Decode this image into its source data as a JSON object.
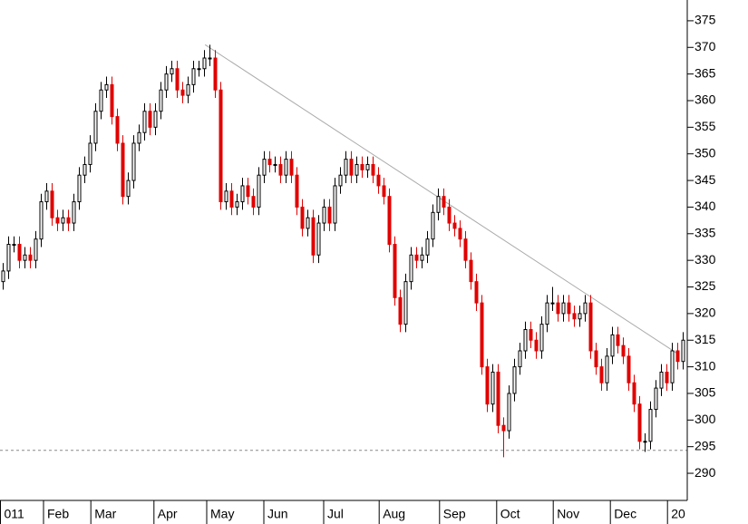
{
  "chart_data": {
    "type": "candlestick",
    "xlim": [
      -0.5,
      125.5
    ],
    "xticks": [
      {
        "value": -0.5,
        "label": "011"
      },
      {
        "value": 7.5,
        "label": "Feb"
      },
      {
        "value": 16.2,
        "label": "Mar"
      },
      {
        "value": 27.8,
        "label": "Apr"
      },
      {
        "value": 37.5,
        "label": "May"
      },
      {
        "value": 48,
        "label": "Jun"
      },
      {
        "value": 59,
        "label": "Jul"
      },
      {
        "value": 69.2,
        "label": "Aug"
      },
      {
        "value": 80.3,
        "label": "Sep"
      },
      {
        "value": 90.8,
        "label": "Oct"
      },
      {
        "value": 101.2,
        "label": "Nov"
      },
      {
        "value": 111.7,
        "label": "Dec"
      },
      {
        "value": 122.2,
        "label": "20"
      }
    ],
    "ylim": [
      284.9,
      378.9
    ],
    "yticks": [
      290,
      295,
      300,
      305,
      310,
      315,
      320,
      325,
      330,
      335,
      340,
      345,
      350,
      355,
      360,
      365,
      370,
      375
    ],
    "up_color": "#000000",
    "down_color": "#e00000",
    "open": [
      326,
      328,
      333,
      333,
      330,
      331,
      330,
      334,
      341,
      343,
      338,
      337,
      338,
      337,
      341,
      346,
      348,
      352,
      358,
      362,
      363,
      357,
      352,
      342,
      345,
      352,
      354,
      358,
      355,
      358,
      362,
      365,
      366,
      362,
      361,
      363,
      366,
      366,
      368,
      368,
      362,
      341,
      343,
      340,
      341,
      344,
      342,
      340,
      346,
      349,
      348,
      348,
      346,
      349,
      346,
      340,
      336,
      338,
      331,
      337,
      340,
      337,
      344,
      346,
      349,
      346,
      348,
      347,
      348,
      346,
      344,
      342,
      333,
      323,
      318,
      326,
      331,
      330,
      331,
      334,
      339,
      342,
      340,
      337,
      336,
      334,
      330,
      326,
      322,
      310,
      303,
      309,
      299,
      298,
      305,
      310,
      313,
      317,
      315,
      313,
      318,
      322,
      322,
      320,
      322,
      320,
      319,
      320,
      322,
      313,
      310,
      307,
      312,
      316,
      314,
      312,
      307,
      303,
      296,
      296,
      302,
      306,
      309,
      307,
      313,
      311
    ],
    "high": [
      329.5,
      334.5,
      334.5,
      334.5,
      332.5,
      332.5,
      335.5,
      342.5,
      344.5,
      344.5,
      339.5,
      339.5,
      339.5,
      342.5,
      347.5,
      349.5,
      353.5,
      359.5,
      363.5,
      364.5,
      364.5,
      358.5,
      353.5,
      346.5,
      353.5,
      355.5,
      359.5,
      359.5,
      359.5,
      363.5,
      366.5,
      367.5,
      367.5,
      363.5,
      364.5,
      367.5,
      367.5,
      369.5,
      370.5,
      369.5,
      363.5,
      344.5,
      344.5,
      342.5,
      345.5,
      345.5,
      343.5,
      347.5,
      350.5,
      350.5,
      349.5,
      349.5,
      350.5,
      350.5,
      347.5,
      341.5,
      339.5,
      339.5,
      338.5,
      341.5,
      341.5,
      345.5,
      347.5,
      350.5,
      350.5,
      349.5,
      349.5,
      349.5,
      349.5,
      347.5,
      345.5,
      343.5,
      334.5,
      324.5,
      327.5,
      332.5,
      332.5,
      332.5,
      335.5,
      340.5,
      343.5,
      343.5,
      341.5,
      338.5,
      337.5,
      335.5,
      331.5,
      327.5,
      323.5,
      311.5,
      310.5,
      310.5,
      300.5,
      306.5,
      311.5,
      314.5,
      318.5,
      318.5,
      316.5,
      319.5,
      323.5,
      325,
      323.5,
      323.5,
      323.5,
      321.5,
      321.5,
      323.5,
      323.5,
      314.5,
      311.5,
      313.5,
      317.5,
      317.5,
      315.5,
      313.5,
      308.5,
      304.5,
      297.5,
      303.5,
      307.5,
      310.5,
      310.5,
      314.5,
      314.5,
      316.5
    ],
    "low": [
      324.5,
      326.5,
      331.5,
      328.5,
      328.5,
      328.5,
      328.5,
      332.5,
      339.5,
      336.5,
      335.5,
      335.5,
      335.5,
      335.5,
      339.5,
      344.5,
      346.5,
      350.5,
      356.5,
      360.5,
      355.5,
      350.5,
      340.5,
      340.5,
      343.5,
      350.5,
      352.5,
      353.5,
      353.5,
      356.5,
      360.5,
      363.5,
      360.5,
      359.5,
      359.5,
      361.5,
      364.5,
      364.5,
      366.5,
      360.5,
      339.5,
      339.5,
      338.5,
      338.5,
      339.5,
      340.5,
      338.5,
      338.5,
      344.5,
      346.5,
      346.5,
      344.5,
      344.5,
      344.5,
      338.5,
      334.5,
      334.5,
      329.5,
      329.5,
      335.5,
      335.5,
      335.5,
      342.5,
      344.5,
      344.5,
      344.5,
      345.5,
      345.5,
      344.5,
      342.5,
      340.5,
      331.5,
      321.5,
      316.5,
      316.5,
      324.5,
      328.5,
      328.5,
      329.5,
      332.5,
      337.5,
      338.5,
      335.5,
      334.5,
      332.5,
      328.5,
      324.5,
      320.5,
      308.5,
      301.5,
      301.5,
      297.5,
      293,
      296.5,
      303.5,
      308.5,
      311.5,
      313.5,
      311.5,
      311.5,
      316.5,
      320.5,
      318.5,
      318.5,
      318.5,
      317.5,
      317.5,
      318.5,
      311.5,
      308.5,
      305.5,
      305.5,
      310.5,
      312.5,
      310.5,
      305.5,
      301.5,
      294.5,
      294,
      294.5,
      300.5,
      304.5,
      305.5,
      305.5,
      309.5,
      309.5
    ],
    "close": [
      328,
      333,
      333,
      330,
      331,
      330,
      334,
      341,
      343,
      338,
      337,
      338,
      337,
      341,
      346,
      348,
      352,
      358,
      362,
      363,
      357,
      352,
      342,
      345,
      352,
      354,
      358,
      355,
      358,
      362,
      365,
      366,
      362,
      361,
      363,
      366,
      366,
      368,
      368,
      362,
      341,
      343,
      340,
      341,
      344,
      342,
      340,
      346,
      349,
      348,
      348,
      346,
      349,
      346,
      340,
      336,
      338,
      331,
      337,
      340,
      337,
      344,
      346,
      349,
      346,
      348,
      347,
      348,
      346,
      344,
      342,
      333,
      323,
      318,
      326,
      331,
      330,
      331,
      334,
      339,
      342,
      340,
      337,
      336,
      334,
      330,
      326,
      322,
      310,
      303,
      309,
      299,
      298,
      305,
      310,
      313,
      317,
      315,
      313,
      318,
      322,
      322,
      320,
      322,
      320,
      319,
      320,
      322,
      313,
      310,
      307,
      312,
      316,
      314,
      312,
      307,
      303,
      296,
      296,
      302,
      306,
      309,
      307,
      313,
      311,
      315
    ],
    "trendline": {
      "x": [
        37.2,
        124
      ],
      "y": [
        370.5,
        312.5
      ],
      "color": "#aaaaaa"
    },
    "support_line": {
      "y": 294.3,
      "color": "#888888"
    }
  }
}
